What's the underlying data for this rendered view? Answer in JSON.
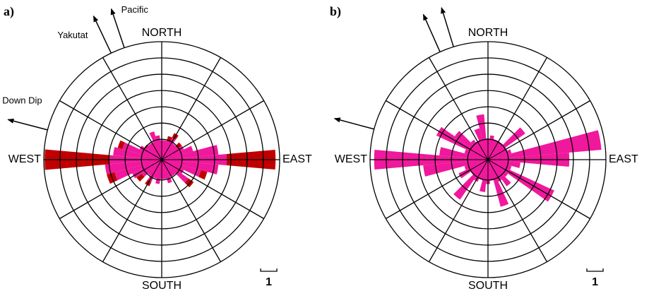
{
  "chart_data": [
    {
      "type": "rose",
      "panel_label": "a)",
      "direction_labels": {
        "north": "NORTH",
        "south": "SOUTH",
        "east": "EAST",
        "west": "WEST"
      },
      "x": [
        0,
        10,
        20,
        30,
        40,
        50,
        60,
        70,
        80,
        90,
        100,
        110,
        120,
        130,
        140,
        150,
        160,
        170,
        180,
        190,
        200,
        210,
        220,
        230,
        240,
        250,
        260,
        270,
        280,
        290,
        300,
        310,
        320,
        330,
        340,
        350
      ],
      "bin_width": 10,
      "series": [
        {
          "color": "#f0189c",
          "values": [
            1.2,
            1.0,
            1.0,
            1.5,
            1.0,
            1.2,
            1.5,
            2.0,
            3.5,
            4.0,
            3.5,
            2.5,
            1.5,
            2.0,
            1.0,
            1.0,
            1.5,
            1.2,
            1.0,
            1.5,
            1.0,
            1.5,
            1.0,
            1.5,
            2.0,
            3.0,
            3.5,
            3.2,
            3.0,
            2.5,
            1.5,
            1.0,
            1.0,
            1.2,
            1.8,
            1.5
          ]
        },
        {
          "color": "#c00000",
          "values": [
            0,
            0,
            0.5,
            0.3,
            0,
            0.3,
            0,
            0,
            0,
            3.0,
            0,
            0.4,
            0,
            0.4,
            0,
            0,
            0,
            0,
            0,
            0,
            0,
            0.3,
            0,
            0.4,
            0,
            0.5,
            0,
            4.0,
            0,
            0.3,
            0,
            0.3,
            0,
            0,
            0,
            0
          ]
        }
      ],
      "center_value": 1.2,
      "rlim": [
        0,
        7.25
      ],
      "rticks": [
        1.25,
        2.25,
        3.25,
        4.25,
        5.25,
        6.25,
        7.25
      ],
      "spoke_step": 30,
      "scale_bar": {
        "value": 1,
        "label": "1"
      },
      "arrows": [
        {
          "label": "Pacific",
          "azimuth": 341.5
        },
        {
          "label": "Yakutat",
          "azimuth": 334.6
        },
        {
          "label": "Down Dip",
          "azimuth": 284.6
        }
      ]
    },
    {
      "type": "rose",
      "panel_label": "b)",
      "direction_labels": {
        "north": "NORTH",
        "south": "SOUTH",
        "east": "EAST",
        "west": "WEST"
      },
      "x": [
        0,
        10,
        20,
        30,
        40,
        50,
        60,
        70,
        80,
        90,
        100,
        110,
        120,
        130,
        140,
        150,
        160,
        170,
        180,
        190,
        200,
        210,
        220,
        230,
        240,
        250,
        260,
        270,
        280,
        290,
        300,
        310,
        320,
        330,
        340,
        350
      ],
      "bin_width": 10,
      "series": [
        {
          "color": "#f0189c",
          "values": [
            1.2,
            1.5,
            1.2,
            1.0,
            1.0,
            2.8,
            1.0,
            1.5,
            7.0,
            5.0,
            2.0,
            1.5,
            4.5,
            1.5,
            2.0,
            1.5,
            3.0,
            1.2,
            1.5,
            2.0,
            1.2,
            1.5,
            3.0,
            1.2,
            2.0,
            1.5,
            4.0,
            7.0,
            3.0,
            1.5,
            3.5,
            2.5,
            1.5,
            1.2,
            2.0,
            2.8
          ]
        }
      ],
      "center_value": 1.3,
      "rlim": [
        0,
        7.25
      ],
      "rticks": [
        1.25,
        2.25,
        3.25,
        4.25,
        5.25,
        6.25,
        7.25
      ],
      "spoke_step": 30,
      "scale_bar": {
        "value": 1,
        "label": "1"
      },
      "arrows": [
        {
          "azimuth": 343
        },
        {
          "azimuth": 336
        },
        {
          "azimuth": 285
        }
      ]
    }
  ]
}
